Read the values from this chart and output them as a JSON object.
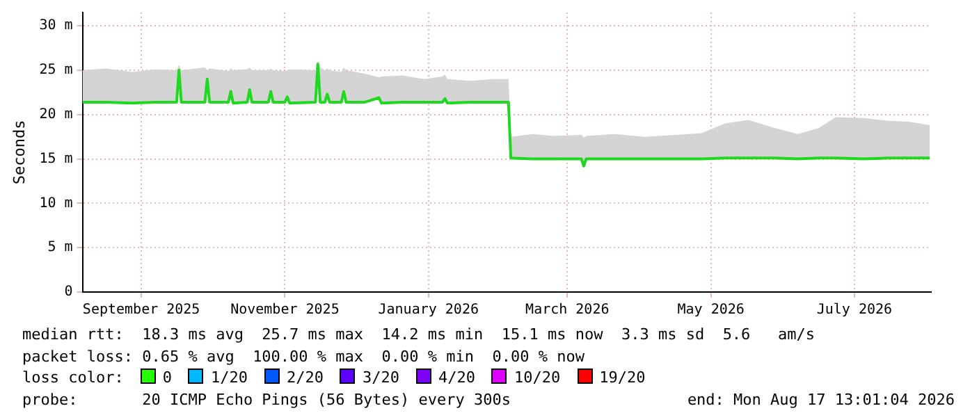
{
  "chart_data": {
    "type": "line",
    "ylabel": "Seconds",
    "xlim": [
      "2025-08-22",
      "2026-08-17T13:01"
    ],
    "xticks": [
      {
        "value": "2025-09-16",
        "label": "September 2025"
      },
      {
        "value": "2025-11-16",
        "label": "November 2025"
      },
      {
        "value": "2026-01-16",
        "label": "January 2026"
      },
      {
        "value": "2026-03-16",
        "label": "March 2026"
      },
      {
        "value": "2026-05-16",
        "label": "May 2026"
      },
      {
        "value": "2026-07-16",
        "label": "July 2026"
      }
    ],
    "ylim": [
      0,
      31.5
    ],
    "yticks": [
      0,
      {
        "value": 5,
        "label": "5 m"
      },
      {
        "value": 10,
        "label": "10 m"
      },
      {
        "value": 15,
        "label": "15 m"
      },
      {
        "value": 20,
        "label": "20 m"
      },
      {
        "value": 25,
        "label": "25 m"
      },
      {
        "value": 30,
        "label": "30 m"
      }
    ],
    "grid": true,
    "legend": false,
    "marker": "none",
    "line_style": "solid",
    "series": [
      {
        "color": "#1fd81f",
        "x": [
          "2025-08-22",
          "2025-09-01",
          "2025-09-12",
          "2025-09-22",
          "2025-10-01",
          "2025-10-02",
          "2025-10-03",
          "2025-10-13",
          "2025-10-14",
          "2025-10-15",
          "2025-10-23",
          "2025-10-24",
          "2025-10-25",
          "2025-10-31",
          "2025-11-01",
          "2025-11-02",
          "2025-11-09",
          "2025-11-10",
          "2025-11-11",
          "2025-11-16",
          "2025-11-17",
          "2025-11-18",
          "2025-11-29",
          "2025-11-30",
          "2025-12-01",
          "2025-12-03",
          "2025-12-04",
          "2025-12-05",
          "2025-12-10",
          "2025-12-11",
          "2025-12-12",
          "2025-12-20",
          "2025-12-26",
          "2025-12-27",
          "2026-01-05",
          "2026-01-14",
          "2026-01-22",
          "2026-01-23",
          "2026-01-24",
          "2026-02-03",
          "2026-02-12",
          "2026-02-19",
          "2026-02-20",
          "2026-03-01",
          "2026-03-10",
          "2026-03-22",
          "2026-03-23",
          "2026-03-24",
          "2026-04-05",
          "2026-04-18",
          "2026-05-01",
          "2026-05-12",
          "2026-05-22",
          "2026-06-01",
          "2026-06-12",
          "2026-06-22",
          "2026-07-01",
          "2026-07-08",
          "2026-07-20",
          "2026-07-30",
          "2026-08-08",
          "2026-08-17"
        ],
        "values": [
          21.4,
          21.4,
          21.3,
          21.4,
          21.4,
          25,
          21.4,
          21.4,
          24,
          21.4,
          21.4,
          22.6,
          21.3,
          21.4,
          22.8,
          21.4,
          21.4,
          22.6,
          21.4,
          21.4,
          22,
          21.3,
          21.4,
          25.7,
          21.4,
          21.4,
          22.3,
          21.4,
          21.4,
          22.6,
          21.4,
          21.4,
          21.9,
          21.3,
          21.4,
          21.4,
          21.4,
          21.8,
          21.3,
          21.4,
          21.4,
          21.4,
          15.1,
          15,
          15,
          15,
          14.2,
          15,
          15,
          15,
          15,
          15,
          15.1,
          15.1,
          15.1,
          15,
          15.1,
          15.1,
          15,
          15.1,
          15.1,
          15.1
        ],
        "lower": [
          21.4,
          21.4,
          21.3,
          21.4,
          21.4,
          25,
          21.4,
          21.4,
          24,
          21.4,
          21.4,
          22.6,
          21.3,
          21.4,
          22.8,
          21.4,
          21.4,
          22.6,
          21.4,
          21.4,
          22,
          21.3,
          21.4,
          25.7,
          21.4,
          21.4,
          22.3,
          21.4,
          21.4,
          22.6,
          21.4,
          21.4,
          21.9,
          21.3,
          21.4,
          21.4,
          21.4,
          21.8,
          21.3,
          21.4,
          21.4,
          21.4,
          15.1,
          15,
          15,
          15,
          14.2,
          15,
          15,
          15,
          15,
          15,
          15.1,
          15.1,
          15.1,
          15,
          15.1,
          15.1,
          15,
          15.1,
          15.1,
          15.1
        ],
        "upper": [
          25,
          25.2,
          24.8,
          25.1,
          25,
          25.6,
          25,
          25.3,
          25,
          25.2,
          24.9,
          25.2,
          25,
          25.1,
          25.3,
          25,
          25,
          25.2,
          25,
          24.9,
          25,
          25.1,
          25,
          26,
          25.3,
          25,
          25.2,
          25,
          24.8,
          25.3,
          25,
          24.6,
          24.2,
          24.3,
          24.4,
          24,
          24.3,
          24.5,
          24,
          23.8,
          24,
          24,
          17.5,
          17.8,
          17.6,
          17.7,
          17.4,
          17.6,
          17.8,
          17.5,
          17.7,
          17.9,
          19,
          19.4,
          18.5,
          17.8,
          18.5,
          19.7,
          19.6,
          19.3,
          19.2,
          18.8
        ]
      }
    ],
    "annotations": [
      "median rtt:  18.3 ms avg  25.7 ms max  14.2 ms min  15.1 ms now  3.3 ms sd  5.6   am/s",
      "packet loss: 0.65 % avg  100.00 % max  0.00 % min  0.00 % now",
      "loss color:",
      "0",
      "1/20",
      "2/20",
      "3/20",
      "4/20",
      "10/20",
      "19/20",
      "probe:       20 ICMP Echo Pings (56 Bytes) every 300s",
      "end: Mon Aug 17 13:01:04 2026"
    ]
  }
}
